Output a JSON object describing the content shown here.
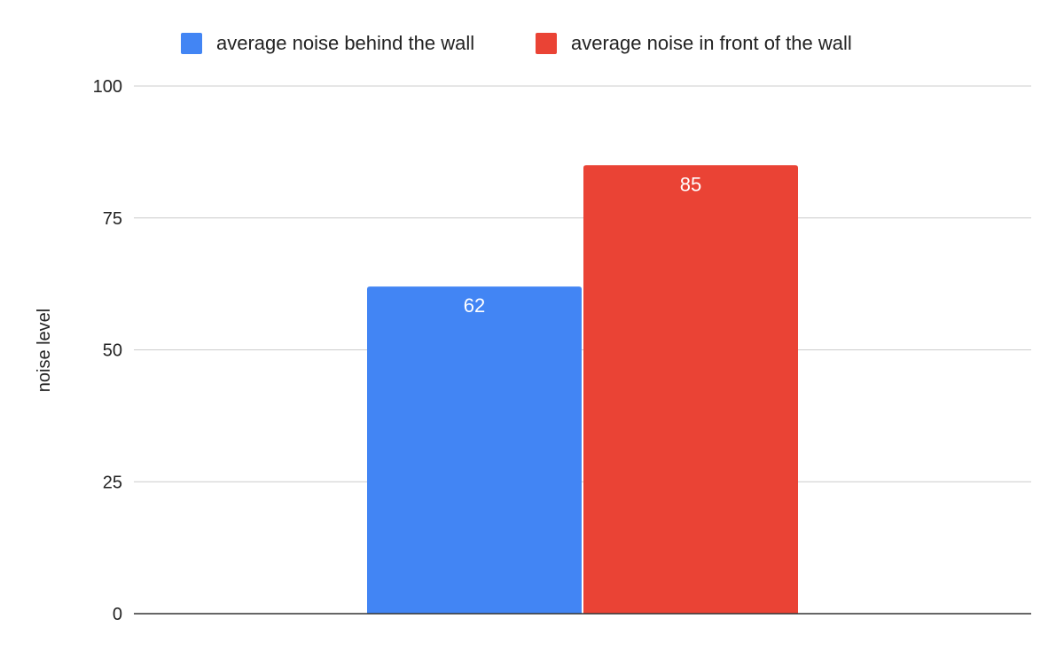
{
  "chart_data": {
    "type": "bar",
    "categories": [
      ""
    ],
    "series": [
      {
        "name": "average noise behind the wall",
        "values": [
          62
        ],
        "color": "#4285f4"
      },
      {
        "name": "average noise in front of the wall",
        "values": [
          85
        ],
        "color": "#ea4335"
      }
    ],
    "ylabel": "noise level",
    "xlabel": "",
    "ylim": [
      0,
      100
    ],
    "yticks": [
      0,
      25,
      50,
      75,
      100
    ],
    "yticks_labels": [
      "0",
      "25",
      "50",
      "75",
      "100"
    ],
    "grid": true,
    "legend_position": "top-center",
    "data_labels": [
      "62",
      "85"
    ],
    "colors": {
      "gridline": "#cccccc",
      "baseline": "#333333",
      "text": "#222222"
    }
  }
}
